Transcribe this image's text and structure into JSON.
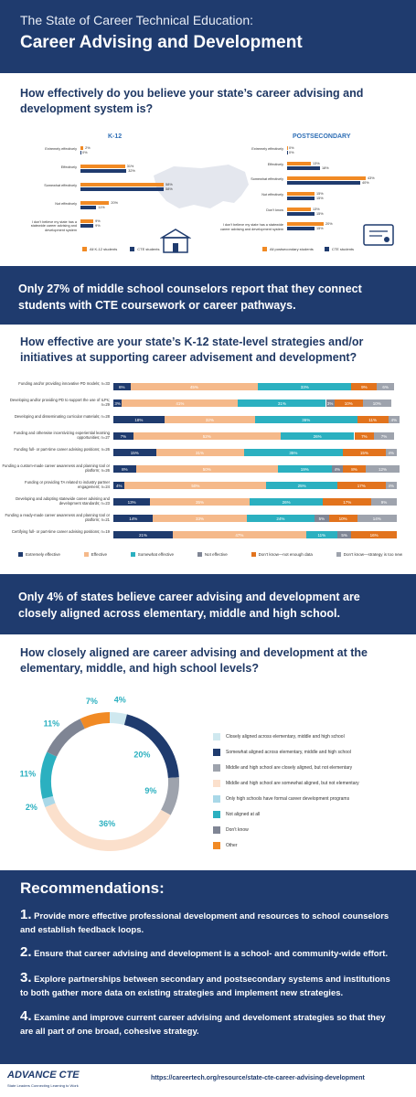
{
  "header": {
    "title_line1": "The State of Career Technical Education:",
    "title_line2": "Career Advising and Development"
  },
  "section1": {
    "question": "How effectively do you believe your state’s career advising and development system is?"
  },
  "banner1": "Only 27% of middle school counselors report that they connect students with CTE coursework or career pathways.",
  "section2": {
    "question": "How effective are your state’s K-12 state-level strategies and/or initiatives at supporting career advisement and development?"
  },
  "banner2": "Only 4% of states believe career advising and development are closely aligned across elementary, middle and high school.",
  "section3": {
    "question": "How closely aligned are career advising and development at the elementary, middle, and high school levels?"
  },
  "recommendations": {
    "title": "Recommendations:",
    "items": [
      {
        "num": "1.",
        "text": "Provide more effective professional development and resources to school counselors and establish feedback loops."
      },
      {
        "num": "2.",
        "text": "Ensure that career advising and development is a school- and community-wide effort."
      },
      {
        "num": "3.",
        "text": "Explore partnerships between secondary and postsecondary systems and institutions to both gather more data on existing strategies and implement new strategies."
      },
      {
        "num": "4.",
        "text": "Examine and improve current career advising and develoment strategies so that they are all part of one broad, cohesive strategy."
      }
    ]
  },
  "footer": {
    "logo": "ADVANCE CTE",
    "tagline": "State Leaders Connecting Learning to Work",
    "url": "https://careertech.org/resource/state-cte-career-advising-development"
  },
  "colors": {
    "navy": "#1f3b6e",
    "orange": "#f18a24",
    "peach": "#f5b98a",
    "teal": "#2bb0c0",
    "gray": "#7f8594",
    "darkorange": "#e2731d",
    "slate": "#9ea3ad"
  },
  "chart_data": [
    {
      "type": "bar",
      "title": "K-12",
      "categories": [
        "Extremely effectively",
        "Effectively",
        "Somewhat effectively",
        "Not effectively",
        "I don’t believe my state has a statewide career advising and development system"
      ],
      "series": [
        {
          "name": "All K-12 students",
          "values": [
            2,
            31,
            58,
            20,
            9
          ]
        },
        {
          "name": "CTE students",
          "values": [
            0,
            32,
            58,
            11,
            9
          ]
        }
      ],
      "value_labels": [
        [
          "2%",
          "31%",
          "58%",
          "20%",
          "9%"
        ],
        [
          "0%",
          "32%",
          "58%",
          "11%",
          "9%"
        ]
      ],
      "xlim": [
        0,
        70
      ]
    },
    {
      "type": "bar",
      "title": "POSTSECONDARY",
      "categories": [
        "Extremely effectively",
        "Effectively",
        "Somewhat effectively",
        "Not effectively",
        "Don’t know",
        "I don’t believe my state has a statewide career advising and development system"
      ],
      "series": [
        {
          "name": "All postsecondary students",
          "values": [
            0,
            13,
            43,
            15,
            13,
            20
          ]
        },
        {
          "name": "CTE students",
          "values": [
            0,
            18,
            40,
            15,
            15,
            15
          ]
        }
      ],
      "value_labels": [
        [
          "0%",
          "13%",
          "43%",
          "15%",
          "13%",
          "20%"
        ],
        [
          "0%",
          "18%",
          "40%",
          "15%",
          "15%",
          "15%"
        ]
      ],
      "xlim": [
        0,
        50
      ]
    },
    {
      "type": "bar",
      "stacked": true,
      "categories": [
        "Funding and/or providing innovative PD models; n=33",
        "Developing and/or providing PD to support the use of ILPs; n=29",
        "Developing and disseminating curricular materials; n=28",
        "Funding and otherwise incentivizing experiential learning opportunities; n=27",
        "Funding full- or part-time career advising positions; n=26",
        "Funding a custom-made career awareness and planning tool or platform; n=26",
        "Funding or providing TA related to industry partner engagement; n=24",
        "Developing and adopting statewide career advising and development standards; n=23",
        "Funding a ready-made career awareness and planning tool or platform; n=21",
        "Certifying full- or part-time career advising positions; n=19"
      ],
      "series": [
        {
          "name": "Extremely effective",
          "values": [
            6,
            3,
            18,
            7,
            15,
            8,
            4,
            13,
            14,
            21
          ]
        },
        {
          "name": "Effective",
          "values": [
            45,
            41,
            32,
            52,
            31,
            50,
            50,
            35,
            33,
            47
          ]
        },
        {
          "name": "Somewhat effective",
          "values": [
            33,
            31,
            36,
            26,
            35,
            19,
            25,
            26,
            24,
            11
          ]
        },
        {
          "name": "Not effective",
          "values": [
            0,
            3,
            0,
            0,
            0,
            4,
            0,
            0,
            5,
            5
          ]
        },
        {
          "name": "Don’t know—not enough data",
          "values": [
            9,
            10,
            11,
            7,
            15,
            8,
            17,
            17,
            10,
            16
          ]
        },
        {
          "name": "Don’t know—strategy is too new",
          "values": [
            6,
            10,
            4,
            7,
            4,
            12,
            4,
            9,
            14,
            0
          ]
        }
      ]
    },
    {
      "type": "pie",
      "donut": true,
      "labels": [
        "Closely aligned across elementary, middle and high school",
        "Somewhat aligned across elementary, middle and high school",
        "Middle and high school are closely aligned, but not elementary",
        "Middle and high school are somewhat aligned, but not elementary",
        "Only high schools have formal career development programs",
        "Not aligned at all",
        "Don’t know",
        "Other"
      ],
      "values": [
        4,
        20,
        9,
        36,
        2,
        11,
        11,
        7
      ],
      "value_labels": [
        "4%",
        "20%",
        "9%",
        "36%",
        "2%",
        "11%",
        "11%",
        "7%"
      ],
      "colors": [
        "#cfe8ef",
        "#1f3b6e",
        "#9ea3ad",
        "#fbe0cc",
        "#a9d8e8",
        "#2bb0c0",
        "#7f8594",
        "#f18a24"
      ]
    }
  ]
}
